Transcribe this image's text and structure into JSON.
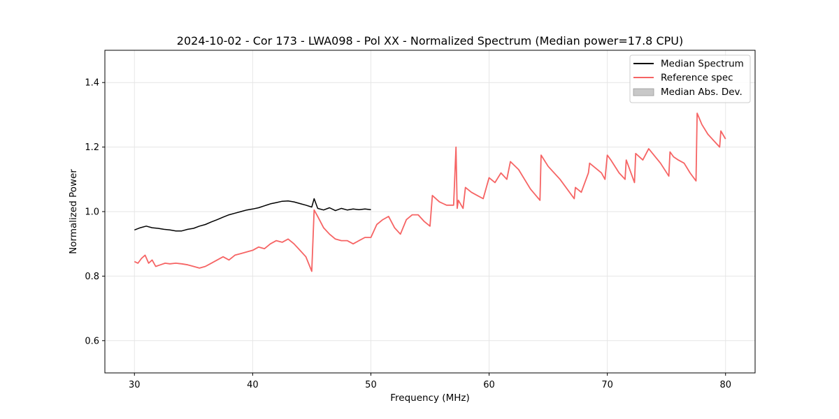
{
  "chart_data": {
    "type": "line",
    "title": "2024-10-02 - Cor 173 - LWA098 - Pol XX - Normalized Spectrum (Median power=17.8 CPU)",
    "xlabel": "Frequency (MHz)",
    "ylabel": "Normalized Power",
    "xlim": [
      27.5,
      82.5
    ],
    "ylim": [
      0.5,
      1.5
    ],
    "xticks": [
      30,
      40,
      50,
      60,
      70,
      80
    ],
    "xtick_labels": [
      "30",
      "40",
      "50",
      "60",
      "70",
      "80"
    ],
    "yticks": [
      0.6,
      0.8,
      1.0,
      1.2,
      1.4
    ],
    "ytick_labels": [
      "0.6",
      "0.8",
      "1.0",
      "1.2",
      "1.4"
    ],
    "grid": true,
    "legend_position": "top-right",
    "legend": [
      {
        "label": "Median Spectrum",
        "kind": "line",
        "color": "#000000"
      },
      {
        "label": "Reference spec",
        "kind": "line",
        "color": "#f66464"
      },
      {
        "label": "Median Abs. Dev.",
        "kind": "patch",
        "color": "#c8c8c8"
      }
    ],
    "series": [
      {
        "name": "Median Spectrum",
        "color": "#000000",
        "x": [
          30.0,
          30.5,
          31.0,
          31.5,
          32.0,
          32.5,
          33.0,
          33.5,
          34.0,
          34.5,
          35.0,
          35.5,
          36.0,
          36.5,
          37.0,
          37.5,
          38.0,
          38.5,
          39.0,
          39.5,
          40.0,
          40.5,
          41.0,
          41.5,
          42.0,
          42.5,
          43.0,
          43.5,
          44.0,
          44.5,
          45.0,
          45.2,
          45.5,
          46.0,
          46.5,
          47.0,
          47.5,
          48.0,
          48.5,
          49.0,
          49.5,
          50.0
        ],
        "y": [
          0.943,
          0.95,
          0.955,
          0.95,
          0.948,
          0.945,
          0.943,
          0.94,
          0.94,
          0.945,
          0.948,
          0.955,
          0.96,
          0.968,
          0.975,
          0.983,
          0.99,
          0.995,
          1.0,
          1.005,
          1.008,
          1.012,
          1.018,
          1.024,
          1.028,
          1.032,
          1.033,
          1.03,
          1.025,
          1.02,
          1.014,
          1.04,
          1.01,
          1.005,
          1.012,
          1.003,
          1.01,
          1.005,
          1.008,
          1.006,
          1.008,
          1.006
        ]
      },
      {
        "name": "Reference spec",
        "color": "#f66464",
        "x": [
          30.0,
          30.3,
          30.6,
          30.9,
          31.2,
          31.5,
          31.8,
          32.2,
          32.6,
          33.0,
          33.5,
          34.0,
          34.5,
          35.0,
          35.5,
          36.0,
          36.5,
          37.0,
          37.5,
          38.0,
          38.5,
          39.0,
          39.5,
          40.0,
          40.5,
          41.0,
          41.5,
          42.0,
          42.5,
          43.0,
          43.5,
          44.0,
          44.5,
          45.0,
          45.2,
          45.5,
          46.0,
          46.5,
          47.0,
          47.5,
          48.0,
          48.5,
          49.0,
          49.5,
          50.0,
          50.5,
          51.0,
          51.5,
          52.0,
          52.5,
          53.0,
          53.5,
          54.0,
          54.5,
          55.0,
          55.2,
          55.8,
          56.4,
          57.0,
          57.2,
          57.3,
          57.4,
          57.8,
          58.0,
          58.5,
          59.0,
          59.5,
          60.0,
          60.5,
          61.0,
          61.5,
          61.8,
          62.5,
          63.5,
          64.3,
          64.4,
          65.0,
          66.0,
          67.2,
          67.3,
          67.8,
          68.4,
          68.5,
          69.5,
          69.8,
          70.0,
          70.3,
          71.0,
          71.5,
          71.6,
          72.3,
          72.4,
          73.0,
          73.5,
          74.5,
          75.2,
          75.3,
          75.6,
          76.0,
          76.5,
          77.0,
          77.5,
          77.6,
          78.0,
          78.5,
          79.0,
          79.5,
          79.6,
          80.0
        ],
        "y": [
          0.845,
          0.84,
          0.855,
          0.865,
          0.84,
          0.85,
          0.83,
          0.835,
          0.84,
          0.838,
          0.84,
          0.838,
          0.835,
          0.83,
          0.825,
          0.83,
          0.84,
          0.85,
          0.86,
          0.85,
          0.865,
          0.87,
          0.875,
          0.88,
          0.89,
          0.885,
          0.9,
          0.91,
          0.905,
          0.915,
          0.9,
          0.88,
          0.86,
          0.815,
          1.005,
          0.985,
          0.95,
          0.93,
          0.915,
          0.91,
          0.91,
          0.9,
          0.91,
          0.92,
          0.92,
          0.96,
          0.975,
          0.985,
          0.95,
          0.93,
          0.975,
          0.99,
          0.99,
          0.97,
          0.955,
          1.05,
          1.03,
          1.02,
          1.02,
          1.2,
          1.01,
          1.035,
          1.01,
          1.075,
          1.06,
          1.05,
          1.04,
          1.105,
          1.09,
          1.12,
          1.1,
          1.155,
          1.13,
          1.07,
          1.035,
          1.175,
          1.14,
          1.1,
          1.04,
          1.075,
          1.06,
          1.12,
          1.15,
          1.12,
          1.1,
          1.175,
          1.16,
          1.12,
          1.1,
          1.16,
          1.09,
          1.18,
          1.16,
          1.195,
          1.15,
          1.11,
          1.185,
          1.17,
          1.16,
          1.15,
          1.12,
          1.095,
          1.305,
          1.27,
          1.24,
          1.22,
          1.2,
          1.25,
          1.225
        ]
      }
    ]
  }
}
